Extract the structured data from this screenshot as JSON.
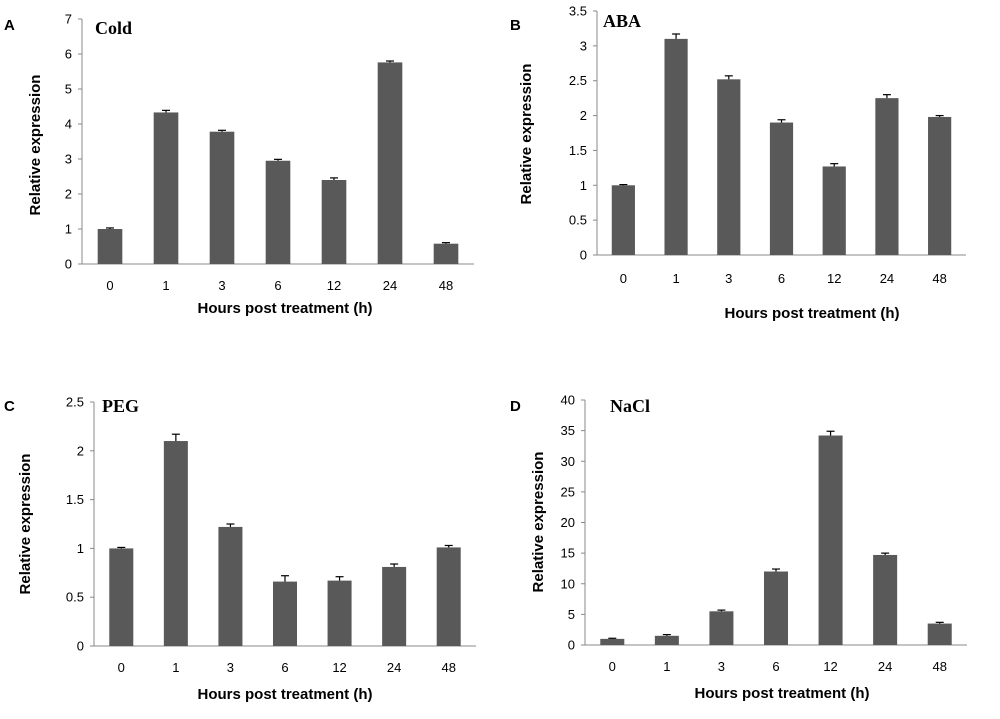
{
  "figure": {
    "background": "#ffffff",
    "bar_color": "#595959"
  },
  "chart_data": [
    {
      "type": "bar",
      "panel_letter": "A",
      "title": "Cold",
      "xlabel": "Hours post treatment (h)",
      "ylabel": "Relative expression",
      "categories": [
        "0",
        "1",
        "3",
        "6",
        "12",
        "24",
        "48"
      ],
      "values": [
        1.0,
        4.33,
        3.78,
        2.95,
        2.4,
        5.76,
        0.58
      ],
      "errors": [
        0.03,
        0.06,
        0.04,
        0.04,
        0.06,
        0.04,
        0.03
      ],
      "ylim": [
        0,
        7
      ],
      "yticks": [
        "0",
        "1",
        "2",
        "3",
        "4",
        "5",
        "6",
        "7"
      ]
    },
    {
      "type": "bar",
      "panel_letter": "B",
      "title": "ABA",
      "xlabel": "Hours post treatment (h)",
      "ylabel": "Relative expression",
      "categories": [
        "0",
        "1",
        "3",
        "6",
        "12",
        "24",
        "48"
      ],
      "values": [
        1.0,
        3.1,
        2.52,
        1.9,
        1.27,
        2.25,
        1.98
      ],
      "errors": [
        0.01,
        0.07,
        0.05,
        0.04,
        0.04,
        0.05,
        0.02
      ],
      "ylim": [
        0,
        3.5
      ],
      "yticks": [
        "0",
        "0.5",
        "1",
        "1.5",
        "2",
        "2.5",
        "3",
        "3.5"
      ]
    },
    {
      "type": "bar",
      "panel_letter": "C",
      "title": "PEG",
      "xlabel": "Hours post treatment (h)",
      "ylabel": "Relative expression",
      "categories": [
        "0",
        "1",
        "3",
        "6",
        "12",
        "24",
        "48"
      ],
      "values": [
        1.0,
        2.1,
        1.22,
        0.66,
        0.67,
        0.81,
        1.01
      ],
      "errors": [
        0.01,
        0.07,
        0.03,
        0.06,
        0.04,
        0.03,
        0.02
      ],
      "ylim": [
        0,
        2.5
      ],
      "yticks": [
        "0",
        "0.5",
        "1",
        "1.5",
        "2",
        "2.5"
      ]
    },
    {
      "type": "bar",
      "panel_letter": "D",
      "title": "NaCl",
      "xlabel": "Hours post treatment (h)",
      "ylabel": "Relative expression",
      "categories": [
        "0",
        "1",
        "3",
        "6",
        "12",
        "24",
        "48"
      ],
      "values": [
        1.0,
        1.5,
        5.5,
        12.0,
        34.2,
        14.7,
        3.5
      ],
      "errors": [
        0.1,
        0.2,
        0.2,
        0.4,
        0.7,
        0.3,
        0.2
      ],
      "ylim": [
        0,
        40
      ],
      "yticks": [
        "0",
        "5",
        "10",
        "15",
        "20",
        "25",
        "30",
        "35",
        "40"
      ]
    }
  ]
}
